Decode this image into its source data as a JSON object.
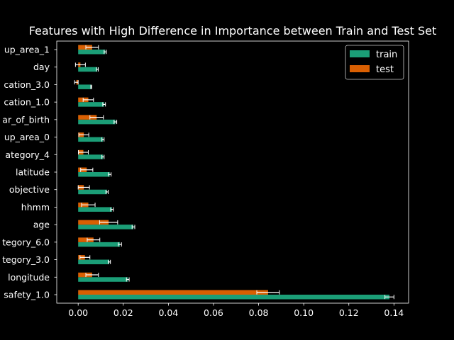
{
  "chart_data": {
    "type": "bar",
    "orientation": "horizontal",
    "title": "Features with High Difference in Importance between Train and Test Set",
    "xlabel": "",
    "ylabel": "",
    "xlim": [
      -0.0095,
      0.1465
    ],
    "xticks": [
      0.0,
      0.02,
      0.04,
      0.06,
      0.08,
      0.1,
      0.12,
      0.14
    ],
    "xtick_labels": [
      "0.00",
      "0.02",
      "0.04",
      "0.06",
      "0.08",
      "0.10",
      "0.12",
      "0.14"
    ],
    "grid": false,
    "legend_position": "top-right",
    "categories": [
      "up_area_1",
      "day",
      "cation_3.0",
      "cation_1.0",
      "ar_of_birth",
      "up_area_0",
      "ategory_4",
      "latitude",
      "objective",
      "hhmm",
      "age",
      "tegory_6.0",
      "tegory_3.0",
      "longitude",
      "safety_1.0"
    ],
    "series": [
      {
        "name": "train",
        "color": "#1b9e77",
        "values": [
          0.012,
          0.0085,
          0.0058,
          0.0115,
          0.0165,
          0.011,
          0.011,
          0.014,
          0.0128,
          0.015,
          0.0245,
          0.0185,
          0.0138,
          0.022,
          0.138
        ],
        "errors": [
          0.0005,
          0.0004,
          0.0002,
          0.0006,
          0.0006,
          0.0005,
          0.0005,
          0.0006,
          0.0005,
          0.0006,
          0.0006,
          0.0007,
          0.0005,
          0.0006,
          0.002
        ]
      },
      {
        "name": "test",
        "color": "#d95f02",
        "values": [
          0.0062,
          0.001,
          -0.0008,
          0.0045,
          0.0082,
          0.0025,
          0.0023,
          0.0038,
          0.0025,
          0.0045,
          0.0135,
          0.0068,
          0.003,
          0.0062,
          0.0842
        ],
        "errors": [
          0.0028,
          0.0022,
          0.0008,
          0.0023,
          0.003,
          0.0022,
          0.0022,
          0.0027,
          0.0025,
          0.003,
          0.004,
          0.0028,
          0.0022,
          0.0028,
          0.005
        ]
      }
    ]
  }
}
